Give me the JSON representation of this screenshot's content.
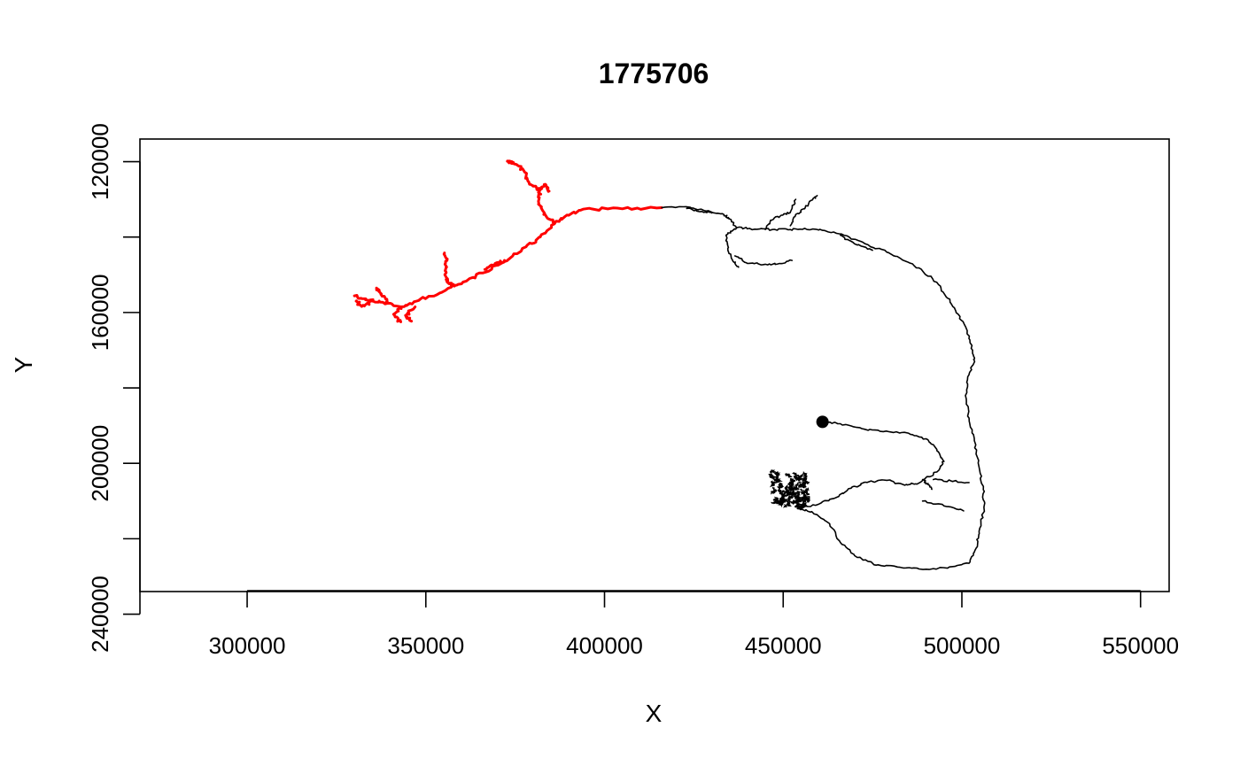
{
  "chart_data": {
    "type": "line",
    "title": "1775706",
    "xlabel": "X",
    "ylabel": "Y",
    "xlim": [
      270000,
      558000
    ],
    "ylim": [
      234000,
      114000
    ],
    "y_axis_inverted": true,
    "grid": false,
    "x_ticks": [
      300000,
      350000,
      400000,
      450000,
      500000,
      550000
    ],
    "x_tick_labels": [
      "300000",
      "350000",
      "400000",
      "450000",
      "500000",
      "550000"
    ],
    "y_ticks": [
      120000,
      140000,
      160000,
      180000,
      200000,
      220000,
      240000
    ],
    "y_tick_labels": [
      "120000",
      "",
      "160000",
      "",
      "200000",
      "",
      "240000"
    ],
    "colors": {
      "highlight": "#ff0000",
      "neuron": "#000000"
    },
    "series": [
      {
        "color": "#ff0000",
        "paths": [
          [
            [
              416000,
              132200
            ],
            [
              405000,
              132500
            ],
            [
              394000,
              132600
            ],
            [
              389000,
              134500
            ],
            [
              386000,
              136500
            ],
            [
              382000,
              140000
            ],
            [
              378000,
              142600
            ],
            [
              372000,
              146500
            ],
            [
              366000,
              149500
            ],
            [
              360000,
              152400
            ],
            [
              354000,
              154800
            ],
            [
              348000,
              156800
            ],
            [
              343000,
              158500
            ]
          ],
          [
            [
              386000,
              136000
            ],
            [
              383000,
              134000
            ],
            [
              381500,
              130500
            ],
            [
              382000,
              127500
            ],
            [
              379000,
              126000
            ],
            [
              377500,
              122500
            ],
            [
              374500,
              120200
            ],
            [
              372800,
              119900
            ]
          ],
          [
            [
              381500,
              127500
            ],
            [
              383500,
              126000
            ],
            [
              384500,
              127800
            ]
          ],
          [
            [
              372000,
              146200
            ],
            [
              369000,
              147400
            ],
            [
              366500,
              148600
            ]
          ],
          [
            [
              358000,
              153000
            ],
            [
              356000,
              152000
            ],
            [
              355500,
              149000
            ],
            [
              356000,
              145800
            ],
            [
              355200,
              144200
            ]
          ],
          [
            [
              343000,
              158500
            ],
            [
              338000,
              157300
            ],
            [
              334000,
              156800
            ],
            [
              330000,
              155600
            ]
          ],
          [
            [
              343000,
              158500
            ],
            [
              341000,
              160500
            ],
            [
              343000,
              162500
            ]
          ],
          [
            [
              347000,
              158500
            ],
            [
              344500,
              160800
            ],
            [
              346000,
              162300
            ]
          ],
          [
            [
              339500,
              157500
            ],
            [
              337500,
              155200
            ],
            [
              336200,
              153500
            ]
          ],
          [
            [
              335000,
              157000
            ],
            [
              332000,
              158400
            ],
            [
              330500,
              157000
            ]
          ]
        ]
      },
      {
        "color": "#000000",
        "paths": [
          [
            [
              416000,
              132200
            ],
            [
              424000,
              132100
            ],
            [
              428000,
              133000
            ],
            [
              433000,
              133800
            ],
            [
              435000,
              135200
            ],
            [
              437000,
              137500
            ],
            [
              442000,
              137900
            ],
            [
              447000,
              138000
            ],
            [
              452000,
              138000
            ],
            [
              456000,
              137700
            ],
            [
              461000,
              138200
            ],
            [
              467000,
              139500
            ],
            [
              473000,
              141800
            ],
            [
              479000,
              144000
            ],
            [
              483000,
              145800
            ],
            [
              488000,
              148200
            ],
            [
              493000,
              152000
            ],
            [
              496000,
              156200
            ],
            [
              499000,
              160500
            ],
            [
              501500,
              164800
            ],
            [
              503000,
              170000
            ],
            [
              503500,
              172800
            ],
            [
              502000,
              176500
            ],
            [
              501000,
              182000
            ],
            [
              502000,
              188000
            ],
            [
              503500,
              194000
            ],
            [
              504800,
              201000
            ],
            [
              506000,
              207000
            ],
            [
              506200,
              212000
            ],
            [
              504800,
              218000
            ],
            [
              504000,
              222500
            ],
            [
              502000,
              226500
            ],
            [
              496000,
              227800
            ],
            [
              488000,
              228000
            ],
            [
              482000,
              227500
            ],
            [
              476000,
              227000
            ],
            [
              470000,
              224500
            ],
            [
              466000,
              221000
            ],
            [
              463000,
              216000
            ],
            [
              458000,
              212800
            ],
            [
              454000,
              212000
            ]
          ],
          [
            [
              454000,
              212000
            ],
            [
              460000,
              210800
            ],
            [
              465000,
              209000
            ],
            [
              469000,
              206600
            ],
            [
              473000,
              205000
            ],
            [
              479000,
              204500
            ],
            [
              484000,
              205800
            ],
            [
              488000,
              205200
            ],
            [
              493000,
              202300
            ],
            [
              495000,
              199500
            ],
            [
              493000,
              196300
            ],
            [
              490000,
              193500
            ],
            [
              485000,
              192000
            ],
            [
              478000,
              191600
            ],
            [
              472000,
              190800
            ],
            [
              466000,
              189500
            ],
            [
              461000,
              189000
            ]
          ],
          [
            [
              492000,
              204300
            ],
            [
              497000,
              204700
            ],
            [
              502000,
              205100
            ]
          ],
          [
            [
              489000,
              210000
            ],
            [
              495000,
              211300
            ],
            [
              500500,
              212600
            ]
          ],
          [
            [
              489000,
              204300
            ],
            [
              490500,
              205600
            ],
            [
              491500,
              206800
            ]
          ],
          [
            [
              423000,
              132400
            ],
            [
              427000,
              133200
            ],
            [
              430000,
              133600
            ]
          ],
          [
            [
              437000,
              137500
            ],
            [
              434000,
              139500
            ],
            [
              434500,
              143000
            ],
            [
              436000,
              146500
            ],
            [
              437500,
              148000
            ]
          ],
          [
            [
              436500,
              145000
            ],
            [
              440000,
              147000
            ],
            [
              445000,
              147200
            ],
            [
              449000,
              147000
            ],
            [
              452500,
              146200
            ]
          ],
          [
            [
              445000,
              138000
            ],
            [
              446500,
              135500
            ],
            [
              449500,
              134200
            ],
            [
              452000,
              133500
            ],
            [
              453500,
              130000
            ]
          ],
          [
            [
              452000,
              137000
            ],
            [
              453500,
              134000
            ],
            [
              456000,
              132500
            ],
            [
              458000,
              130200
            ],
            [
              459500,
              129000
            ]
          ],
          [
            [
              466000,
              139500
            ],
            [
              470000,
              141800
            ],
            [
              475000,
              143500
            ]
          ]
        ]
      }
    ],
    "dendrite_cluster": {
      "center": [
        452000,
        207000
      ],
      "radius": [
        5200,
        4600
      ],
      "branches": 60
    },
    "soma": {
      "x": 461000,
      "y": 189000,
      "color": "#000000"
    }
  }
}
